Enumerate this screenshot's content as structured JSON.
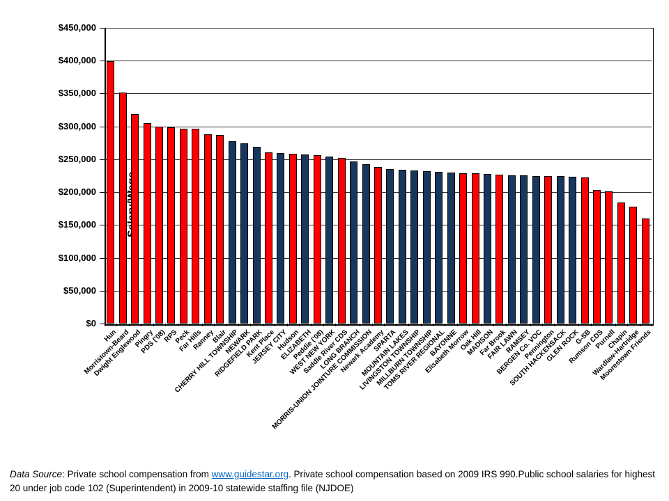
{
  "chart_data": {
    "type": "bar",
    "title": "",
    "xlabel": "",
    "ylabel": "Salary/Wage",
    "ylim": [
      0,
      450000
    ],
    "ytick_step": 50000,
    "ytick_labels": [
      "$0",
      "$50,000",
      "$100,000",
      "$150,000",
      "$200,000",
      "$250,000",
      "$300,000",
      "$350,000",
      "$400,000",
      "$450,000"
    ],
    "grid": true,
    "legend": false,
    "colors": {
      "private": "#FF0000",
      "public": "#17375E"
    },
    "bars": [
      {
        "label": "Hun",
        "value": 399000,
        "sector": "private"
      },
      {
        "label": "Morristown-Beard",
        "value": 352000,
        "sector": "private"
      },
      {
        "label": "Dwight Englewood",
        "value": 319000,
        "sector": "private"
      },
      {
        "label": "Pingry",
        "value": 305000,
        "sector": "private"
      },
      {
        "label": "PDS ('08)",
        "value": 300000,
        "sector": "private"
      },
      {
        "label": "RPS",
        "value": 299000,
        "sector": "private"
      },
      {
        "label": "Peck",
        "value": 297000,
        "sector": "private"
      },
      {
        "label": "Far Hills",
        "value": 296000,
        "sector": "private"
      },
      {
        "label": "Ranney",
        "value": 288000,
        "sector": "private"
      },
      {
        "label": "Blair",
        "value": 287000,
        "sector": "private"
      },
      {
        "label": "CHERRY HILL TOWNSHIP",
        "value": 277000,
        "sector": "public"
      },
      {
        "label": "NEWARK",
        "value": 274000,
        "sector": "public"
      },
      {
        "label": "RIDGEFIELD PARK",
        "value": 269000,
        "sector": "public"
      },
      {
        "label": "Kent Place",
        "value": 261000,
        "sector": "private"
      },
      {
        "label": "JERSEY CITY",
        "value": 259000,
        "sector": "public"
      },
      {
        "label": "Hudson",
        "value": 258000,
        "sector": "private"
      },
      {
        "label": "ELIZABETH",
        "value": 257000,
        "sector": "public"
      },
      {
        "label": "Peddie ('08)",
        "value": 256000,
        "sector": "private"
      },
      {
        "label": "WEST NEW YORK",
        "value": 254000,
        "sector": "public"
      },
      {
        "label": "Saddle River CDS",
        "value": 252000,
        "sector": "private"
      },
      {
        "label": "LONG BRANCH",
        "value": 247000,
        "sector": "public"
      },
      {
        "label": "MORRIS-UNION JOINTURE COMMISSION",
        "value": 243000,
        "sector": "public"
      },
      {
        "label": "Newark Academy",
        "value": 238000,
        "sector": "private"
      },
      {
        "label": "SPARTA",
        "value": 235000,
        "sector": "public"
      },
      {
        "label": "MOUNTAIN LAKES",
        "value": 234000,
        "sector": "public"
      },
      {
        "label": "LIVINGSTON TOWNSHIP",
        "value": 233000,
        "sector": "public"
      },
      {
        "label": "MILLBURN TOWNSHIP",
        "value": 232000,
        "sector": "public"
      },
      {
        "label": "TOMS RIVER REGIONAL",
        "value": 231000,
        "sector": "public"
      },
      {
        "label": "BAYONNE",
        "value": 230000,
        "sector": "public"
      },
      {
        "label": "Elisabeth Morrow",
        "value": 229000,
        "sector": "private"
      },
      {
        "label": "Oak Hill",
        "value": 228500,
        "sector": "private"
      },
      {
        "label": "MADISON",
        "value": 228000,
        "sector": "public"
      },
      {
        "label": "Far Brook",
        "value": 227000,
        "sector": "private"
      },
      {
        "label": "FAIR LAWN",
        "value": 226000,
        "sector": "public"
      },
      {
        "label": "RAMSEY",
        "value": 225500,
        "sector": "public"
      },
      {
        "label": "BERGEN Co. VOC",
        "value": 225000,
        "sector": "public"
      },
      {
        "label": "Pennington",
        "value": 224500,
        "sector": "private"
      },
      {
        "label": "SOUTH HACKENSACK",
        "value": 224000,
        "sector": "public"
      },
      {
        "label": "GLEN ROCK",
        "value": 223000,
        "sector": "public"
      },
      {
        "label": "G-SB",
        "value": 222000,
        "sector": "private"
      },
      {
        "label": "Rumson CDS",
        "value": 203000,
        "sector": "private"
      },
      {
        "label": "Purnell",
        "value": 201000,
        "sector": "private"
      },
      {
        "label": "Chapin",
        "value": 184000,
        "sector": "private"
      },
      {
        "label": "Wardlaw-Hartridge",
        "value": 178000,
        "sector": "private"
      },
      {
        "label": "Moorestown Friends",
        "value": 160000,
        "sector": "private"
      }
    ]
  },
  "footer": {
    "segments": [
      {
        "text": "Data Source"
      },
      {
        "text": ": Private school compensation from "
      },
      {
        "text": "www.guidestar.org"
      },
      {
        "text": ". Private school compensation based on 2009 IRS 990."
      },
      {
        "text": "Public school salaries for highest 20 under job code 102 (Superintendent) in 2009-10 statewide staffing file (NJDOE)"
      }
    ]
  }
}
